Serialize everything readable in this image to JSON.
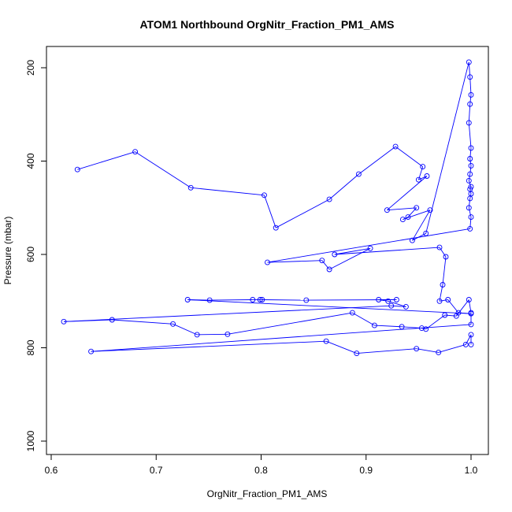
{
  "chart_data": {
    "type": "line",
    "title": "ATOM1 Northbound OrgNitr_Fraction_PM1_AMS",
    "xlabel": "OrgNitr_Fraction_PM1_AMS",
    "ylabel": "Pressure (mbar)",
    "xlim": [
      0.6,
      1.0
    ],
    "ylim": [
      1020,
      160
    ],
    "y_reversed": true,
    "x_ticks": [
      "0.6",
      "0.7",
      "0.8",
      "0.9",
      "1.0"
    ],
    "y_ticks": [
      "200",
      "400",
      "600",
      "800",
      "1000"
    ],
    "line_color": "#0000ff",
    "grid": false,
    "series": [
      {
        "x": [
          0.625,
          0.68,
          0.733,
          0.803,
          0.814,
          0.865,
          0.893,
          0.928,
          0.954,
          0.95,
          0.958,
          0.92,
          0.948,
          0.94,
          0.935,
          0.961,
          0.944,
          0.957,
          0.998,
          0.999,
          1.0,
          0.999,
          0.998,
          1.0,
          0.999,
          1.0,
          0.999,
          0.998,
          1.0,
          0.999,
          1.0,
          0.999,
          0.998,
          1.0,
          0.999,
          0.806,
          0.858,
          0.865,
          0.904,
          0.87,
          0.97,
          0.976,
          0.973,
          0.97,
          0.978,
          0.988,
          1.0,
          0.73,
          0.751,
          0.792,
          0.799,
          0.801,
          0.843,
          0.929,
          0.912,
          0.921,
          0.938,
          0.924,
          0.612,
          0.658,
          0.716,
          0.739,
          0.768,
          0.887,
          0.908,
          0.934,
          0.953,
          0.957,
          0.975,
          0.986,
          0.998,
          1.0,
          1.0,
          0.638,
          0.862,
          0.891,
          0.948,
          0.969,
          0.995,
          1.0,
          1.0
        ],
        "y": [
          418,
          380,
          457,
          473,
          543,
          482,
          428,
          369,
          412,
          440,
          432,
          505,
          500,
          520,
          525,
          505,
          570,
          555,
          188,
          220,
          258,
          278,
          318,
          372,
          395,
          410,
          428,
          442,
          455,
          460,
          470,
          480,
          500,
          520,
          545,
          617,
          613,
          632,
          587,
          600,
          585,
          605,
          665,
          700,
          697,
          725,
          727,
          697,
          698,
          697,
          697,
          697,
          698,
          697,
          697,
          700,
          712,
          710,
          744,
          740,
          749,
          772,
          771,
          725,
          752,
          755,
          758,
          760,
          730,
          732,
          697,
          725,
          750,
          808,
          786,
          812,
          802,
          810,
          793,
          772,
          793
        ]
      }
    ]
  }
}
